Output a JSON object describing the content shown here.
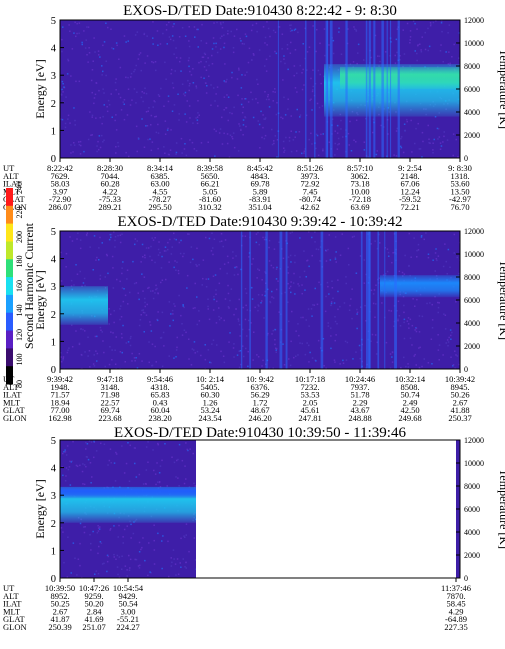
{
  "colors": {
    "background_low": "#3e1ea8",
    "background_mid": "#4a2fb8",
    "band_blue": "#1f5cff",
    "band_cyan": "#1ec8f0",
    "band_green": "#33e0a8",
    "colorbar": [
      "#000000",
      "#3a0c6e",
      "#5a1fc4",
      "#2a5cff",
      "#1aa0ff",
      "#19e0f0",
      "#2ee07a",
      "#bfe82a",
      "#ffe61a",
      "#ff8c1a",
      "#ff1a1a"
    ]
  },
  "colorbar": {
    "label": "Second Harmonic Current",
    "ticks": [
      "80",
      "100",
      "120",
      "140",
      "160",
      "180",
      "200",
      "220",
      "240"
    ]
  },
  "chart_data": [
    {
      "type": "heatmap",
      "title": "EXOS-D/TED   Date:910430   8:22:42 - 9: 8:30",
      "ylabel": "Energy [eV]",
      "ylabel_right": "Temperature [K]",
      "ylim": [
        0,
        5
      ],
      "y_ticks": [
        "0",
        "1",
        "2",
        "3",
        "4",
        "5"
      ],
      "ylim_right": [
        0,
        12000
      ],
      "y_ticks_right": [
        "0",
        "2000",
        "4000",
        "6000",
        "8000",
        "10000",
        "12000"
      ],
      "ephemeris": {
        "labels": [
          "UT",
          "ALT",
          "ILAT",
          "MLT",
          "GLAT",
          "GLON"
        ],
        "columns": [
          [
            "8:22:42",
            "7629.",
            "58.03",
            "3.97",
            "-72.90",
            "286.07"
          ],
          [
            "8:28:30",
            "7044.",
            "60.28",
            "4.22",
            "-75.33",
            "289.21"
          ],
          [
            "8:34:14",
            "6385.",
            "63.00",
            "4.55",
            "-78.27",
            "295.50"
          ],
          [
            "8:39:58",
            "5650.",
            "66.21",
            "5.05",
            "-81.60",
            "310.32"
          ],
          [
            "8:45:42",
            "4843.",
            "69.78",
            "5.89",
            "-83.91",
            "351.04"
          ],
          [
            "8:51:26",
            "3973.",
            "72.92",
            "7.45",
            "-80.74",
            "42.62"
          ],
          [
            "8:57:10",
            "3062.",
            "73.18",
            "10.00",
            "-72.18",
            "63.69"
          ],
          [
            "9: 2:54",
            "2148.",
            "67.06",
            "12.24",
            "-59.52",
            "72.21"
          ],
          [
            "9: 8:30",
            "1318.",
            "53.60",
            "13.50",
            "-42.97",
            "76.70"
          ]
        ]
      },
      "data_extent": [
        0,
        1
      ],
      "bands": [
        {
          "x": [
            0.66,
            1.0
          ],
          "energy": [
            1.5,
            3.4
          ],
          "level": "cyan-green"
        },
        {
          "x": [
            0.7,
            1.0
          ],
          "energy": [
            2.5,
            3.3
          ],
          "level": "green"
        }
      ]
    },
    {
      "type": "heatmap",
      "title": "EXOS-D/TED   Date:910430   9:39:42 - 10:39:42",
      "ylabel": "Energy [eV]",
      "ylabel_right": "Temperature [K]",
      "ylim": [
        0,
        5
      ],
      "y_ticks": [
        "0",
        "1",
        "2",
        "3",
        "4",
        "5"
      ],
      "ylim_right": [
        0,
        12000
      ],
      "y_ticks_right": [
        "0",
        "2000",
        "4000",
        "6000",
        "8000",
        "10000",
        "12000"
      ],
      "ephemeris": {
        "labels": [
          "UT",
          "ALT",
          "ILAT",
          "MLT",
          "GLAT",
          "GLON"
        ],
        "columns": [
          [
            "9:39:42",
            "1948.",
            "71.57",
            "18.94",
            "77.00",
            "162.98"
          ],
          [
            "9:47:18",
            "3148.",
            "71.98",
            "22.57",
            "69.74",
            "223.68"
          ],
          [
            "9:54:46",
            "4318.",
            "65.83",
            "0.43",
            "60.04",
            "238.20"
          ],
          [
            "10: 2:14",
            "5405.",
            "60.30",
            "1.26",
            "53.24",
            "243.54"
          ],
          [
            "10: 9:42",
            "6376.",
            "56.29",
            "1.72",
            "48.67",
            "246.20"
          ],
          [
            "10:17:18",
            "7232.",
            "53.53",
            "2.05",
            "45.61",
            "247.81"
          ],
          [
            "10:24:46",
            "7937.",
            "51.78",
            "2.29",
            "43.67",
            "248.88"
          ],
          [
            "10:32:14",
            "8508.",
            "50.74",
            "2.49",
            "42.50",
            "249.68"
          ],
          [
            "10:39:42",
            "8945.",
            "50.26",
            "2.67",
            "41.88",
            "250.37"
          ]
        ]
      },
      "data_extent": [
        0,
        1
      ],
      "bands": [
        {
          "x": [
            0.0,
            0.12
          ],
          "energy": [
            1.6,
            3.0
          ],
          "level": "cyan"
        },
        {
          "x": [
            0.8,
            1.0
          ],
          "energy": [
            2.6,
            3.4
          ],
          "level": "blue-cyan"
        }
      ]
    },
    {
      "type": "heatmap",
      "title": "EXOS-D/TED   Date:910430   10:39:50 - 11:39:46",
      "ylabel": "Energy [eV]",
      "ylabel_right": "Temperature [K]",
      "ylim": [
        0,
        5
      ],
      "y_ticks": [
        "0",
        "1",
        "2",
        "3",
        "4",
        "5"
      ],
      "ylim_right": [
        0,
        12000
      ],
      "y_ticks_right": [
        "0",
        "2000",
        "4000",
        "6000",
        "8000",
        "10000",
        "12000"
      ],
      "ephemeris": {
        "labels": [
          "UT",
          "ALT",
          "ILAT",
          "MLT",
          "GLAT",
          "GLON"
        ],
        "columns": [
          [
            "10:39:50",
            "8952.",
            "50.25",
            "2.67",
            "41.87",
            "250.39"
          ],
          [
            "10:47:26",
            "9259.",
            "50.20",
            "2.84",
            "41.69",
            "251.07"
          ],
          [
            "10:54:54",
            "9429.",
            "50.54",
            "3.00",
            "-55.21",
            "224.27"
          ],
          [
            "11:37:46",
            "7870.",
            "58.45",
            "4.29",
            "-64.89",
            "227.35"
          ]
        ]
      },
      "data_extent": [
        0,
        0.34
      ],
      "bands": [
        {
          "x": [
            0.0,
            0.34
          ],
          "energy": [
            2.0,
            3.3
          ],
          "level": "cyan"
        },
        {
          "x": [
            0.0,
            0.34
          ],
          "energy": [
            2.9,
            3.3
          ],
          "level": "blue"
        }
      ]
    }
  ]
}
